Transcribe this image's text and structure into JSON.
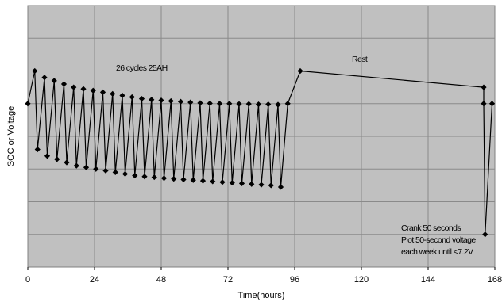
{
  "chart_data": {
    "type": "line",
    "title": "",
    "xlabel": "Time(hours)",
    "ylabel": "SOC  or  Voltage",
    "xlim": [
      0,
      168
    ],
    "ylim": [
      0,
      8
    ],
    "x_ticks": [
      0,
      24,
      48,
      72,
      96,
      120,
      144,
      168
    ],
    "x_tick_labels": [
      "0",
      "24",
      "48",
      "72",
      "96",
      "120",
      "144",
      "168"
    ],
    "y_tick_labels_shown": false,
    "grid": true,
    "background_color": "#c0c0c0",
    "line_color": "#000000",
    "marker": "diamond",
    "annotations": {
      "cycles": "26 cycles 25AH",
      "rest": "Rest",
      "crank_line1": "Crank 50 seconds",
      "crank_line2": "Plot 50-second voltage",
      "crank_line3": "each week until  <7.2V"
    },
    "series": [
      {
        "x": [
          0,
          2.5,
          3.5,
          6,
          7,
          9.5,
          10.5,
          13,
          14,
          16.5,
          17.5,
          20,
          21,
          23.5,
          24.5,
          27,
          28,
          30.5,
          31.5,
          34,
          35,
          37.5,
          38.5,
          41,
          42,
          44.5,
          45.5,
          48,
          49,
          51.5,
          52.5,
          55,
          56,
          58.5,
          59.5,
          62,
          63,
          65.5,
          66.5,
          69,
          70,
          72.5,
          73.5,
          76,
          77,
          79.5,
          80.5,
          83,
          84,
          86.5,
          87.5,
          90,
          91,
          93.5,
          98,
          164,
          164,
          164.5,
          167
        ],
        "y": [
          5.0,
          6.0,
          3.6,
          5.8,
          3.4,
          5.7,
          3.3,
          5.6,
          3.2,
          5.5,
          3.1,
          5.45,
          3.05,
          5.4,
          3.0,
          5.35,
          2.95,
          5.3,
          2.9,
          5.25,
          2.85,
          5.2,
          2.8,
          5.15,
          2.77,
          5.12,
          2.75,
          5.1,
          2.72,
          5.08,
          2.7,
          5.06,
          2.68,
          5.04,
          2.66,
          5.02,
          2.64,
          5.01,
          2.62,
          5.0,
          2.6,
          5.0,
          2.58,
          4.99,
          2.56,
          4.99,
          2.54,
          4.98,
          2.52,
          4.98,
          2.5,
          4.97,
          2.45,
          5.0,
          6.0,
          5.5,
          5.0,
          1.0,
          5.0
        ]
      }
    ]
  }
}
